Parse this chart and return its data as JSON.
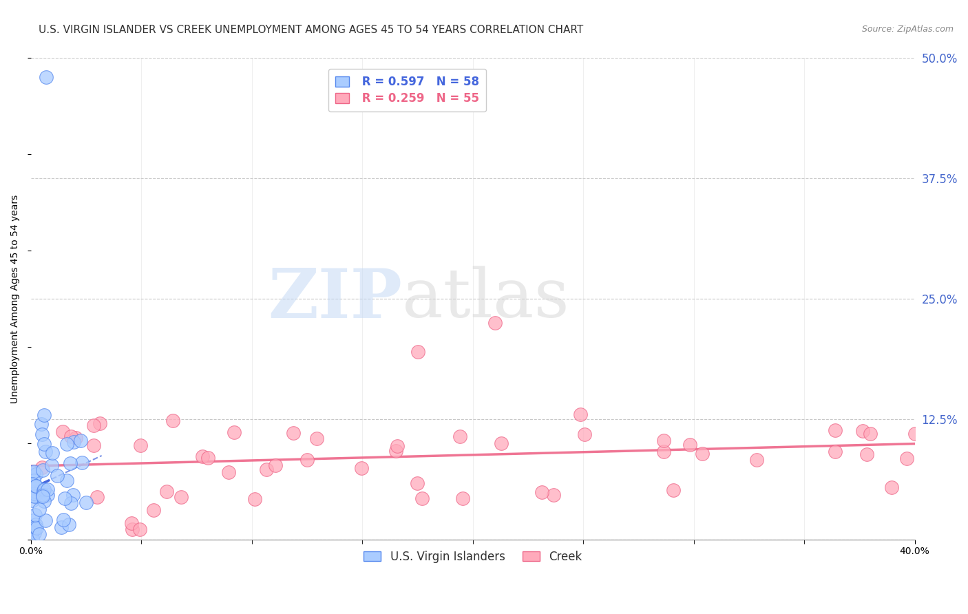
{
  "title": "U.S. VIRGIN ISLANDER VS CREEK UNEMPLOYMENT AMONG AGES 45 TO 54 YEARS CORRELATION CHART",
  "source": "Source: ZipAtlas.com",
  "ylabel": "Unemployment Among Ages 45 to 54 years",
  "xmin": 0.0,
  "xmax": 0.4,
  "ymin": 0.0,
  "ymax": 0.5,
  "yticks": [
    0.0,
    0.125,
    0.25,
    0.375,
    0.5
  ],
  "ytick_labels_right": [
    "",
    "12.5%",
    "25.0%",
    "37.5%",
    "50.0%"
  ],
  "grid_color": "#c8c8c8",
  "background_color": "#ffffff",
  "virgin_islander_fill": "#aaccff",
  "virgin_islander_edge": "#5588ee",
  "creek_fill": "#ffaabb",
  "creek_edge": "#ee6688",
  "R_virgin": 0.597,
  "N_virgin": 58,
  "R_creek": 0.259,
  "N_creek": 55,
  "legend_label_virgin": "U.S. Virgin Islanders",
  "legend_label_creek": "Creek",
  "vi_line_color": "#4466dd",
  "creek_line_color": "#ee6688",
  "watermark_zip": "ZIP",
  "watermark_atlas": "atlas",
  "title_fontsize": 11,
  "axis_label_fontsize": 10,
  "tick_fontsize": 10,
  "legend_fontsize": 11
}
